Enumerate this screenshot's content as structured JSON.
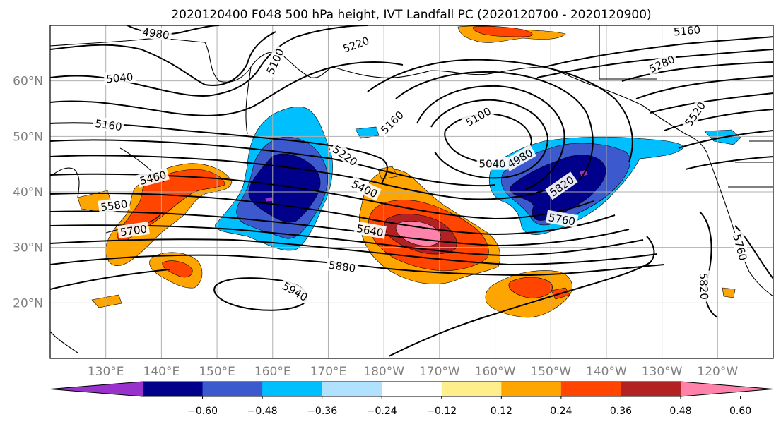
{
  "title": "2020120400 F048 500 hPa height, IVT Landfall PC (2020120700 - 2020120900)",
  "map": {
    "lon_range": [
      120,
      250
    ],
    "lat_range": [
      10,
      70
    ],
    "lat_ticks": [
      {
        "value": 20,
        "label": "20°N"
      },
      {
        "value": 30,
        "label": "30°N"
      },
      {
        "value": 40,
        "label": "40°N"
      },
      {
        "value": 50,
        "label": "50°N"
      },
      {
        "value": 60,
        "label": "60°N"
      }
    ],
    "lon_ticks": [
      {
        "value": 130,
        "label": "130°E"
      },
      {
        "value": 140,
        "label": "140°E"
      },
      {
        "value": 150,
        "label": "150°E"
      },
      {
        "value": 160,
        "label": "160°E"
      },
      {
        "value": 170,
        "label": "170°E"
      },
      {
        "value": 180,
        "label": "180°W"
      },
      {
        "value": 190,
        "label": "170°W"
      },
      {
        "value": 200,
        "label": "160°W"
      },
      {
        "value": 210,
        "label": "150°W"
      },
      {
        "value": 220,
        "label": "140°W"
      },
      {
        "value": 230,
        "label": "130°W"
      },
      {
        "value": 240,
        "label": "120°W"
      }
    ],
    "height_contour_labels": [
      {
        "text": "4980",
        "lon": 139,
        "lat": 68.5,
        "rot": 8
      },
      {
        "text": "5100",
        "lon": 160.5,
        "lat": 63.5,
        "rot": -65
      },
      {
        "text": "5220",
        "lon": 175,
        "lat": 66.5,
        "rot": -20
      },
      {
        "text": "5160",
        "lon": 234.5,
        "lat": 69,
        "rot": -5
      },
      {
        "text": "5040",
        "lon": 132.5,
        "lat": 60.5,
        "rot": -5
      },
      {
        "text": "5280",
        "lon": 230,
        "lat": 63,
        "rot": -25
      },
      {
        "text": "5520",
        "lon": 236,
        "lat": 54,
        "rot": -55
      },
      {
        "text": "5160",
        "lon": 130.5,
        "lat": 52,
        "rot": 8
      },
      {
        "text": "5160",
        "lon": 181.5,
        "lat": 52.5,
        "rot": -45
      },
      {
        "text": "5100",
        "lon": 197,
        "lat": 53.5,
        "rot": -30
      },
      {
        "text": "5040",
        "lon": 199.5,
        "lat": 45,
        "rot": 0
      },
      {
        "text": "4980",
        "lon": 204.5,
        "lat": 46,
        "rot": -30
      },
      {
        "text": "5220",
        "lon": 173,
        "lat": 46.5,
        "rot": 35
      },
      {
        "text": "5460",
        "lon": 138.5,
        "lat": 42.5,
        "rot": -15
      },
      {
        "text": "5400",
        "lon": 176.5,
        "lat": 40.5,
        "rot": 25
      },
      {
        "text": "5580",
        "lon": 131.5,
        "lat": 37.5,
        "rot": -8
      },
      {
        "text": "5820",
        "lon": 212,
        "lat": 41,
        "rot": -35
      },
      {
        "text": "5700",
        "lon": 135,
        "lat": 33,
        "rot": -8
      },
      {
        "text": "5640",
        "lon": 177.5,
        "lat": 33,
        "rot": 10
      },
      {
        "text": "5760",
        "lon": 212,
        "lat": 35,
        "rot": 10
      },
      {
        "text": "5760",
        "lon": 244,
        "lat": 30,
        "rot": 75
      },
      {
        "text": "5880",
        "lon": 172.5,
        "lat": 26.5,
        "rot": 8
      },
      {
        "text": "5940",
        "lon": 164,
        "lat": 22,
        "rot": 30
      },
      {
        "text": "5820",
        "lon": 237.5,
        "lat": 23,
        "rot": 88
      }
    ]
  },
  "colorbar": {
    "colors": [
      "#9932cc",
      "#00008b",
      "#3c5acd",
      "#00bfff",
      "#b0e2ff",
      "#ffffff",
      "#ffee8c",
      "#ffa500",
      "#ff4500",
      "#b22222",
      "#ff82ab"
    ],
    "tick_labels": [
      "−0.60",
      "−0.48",
      "−0.36",
      "−0.24",
      "−0.12",
      "0.12",
      "0.24",
      "0.36",
      "0.48",
      "0.60"
    ]
  }
}
